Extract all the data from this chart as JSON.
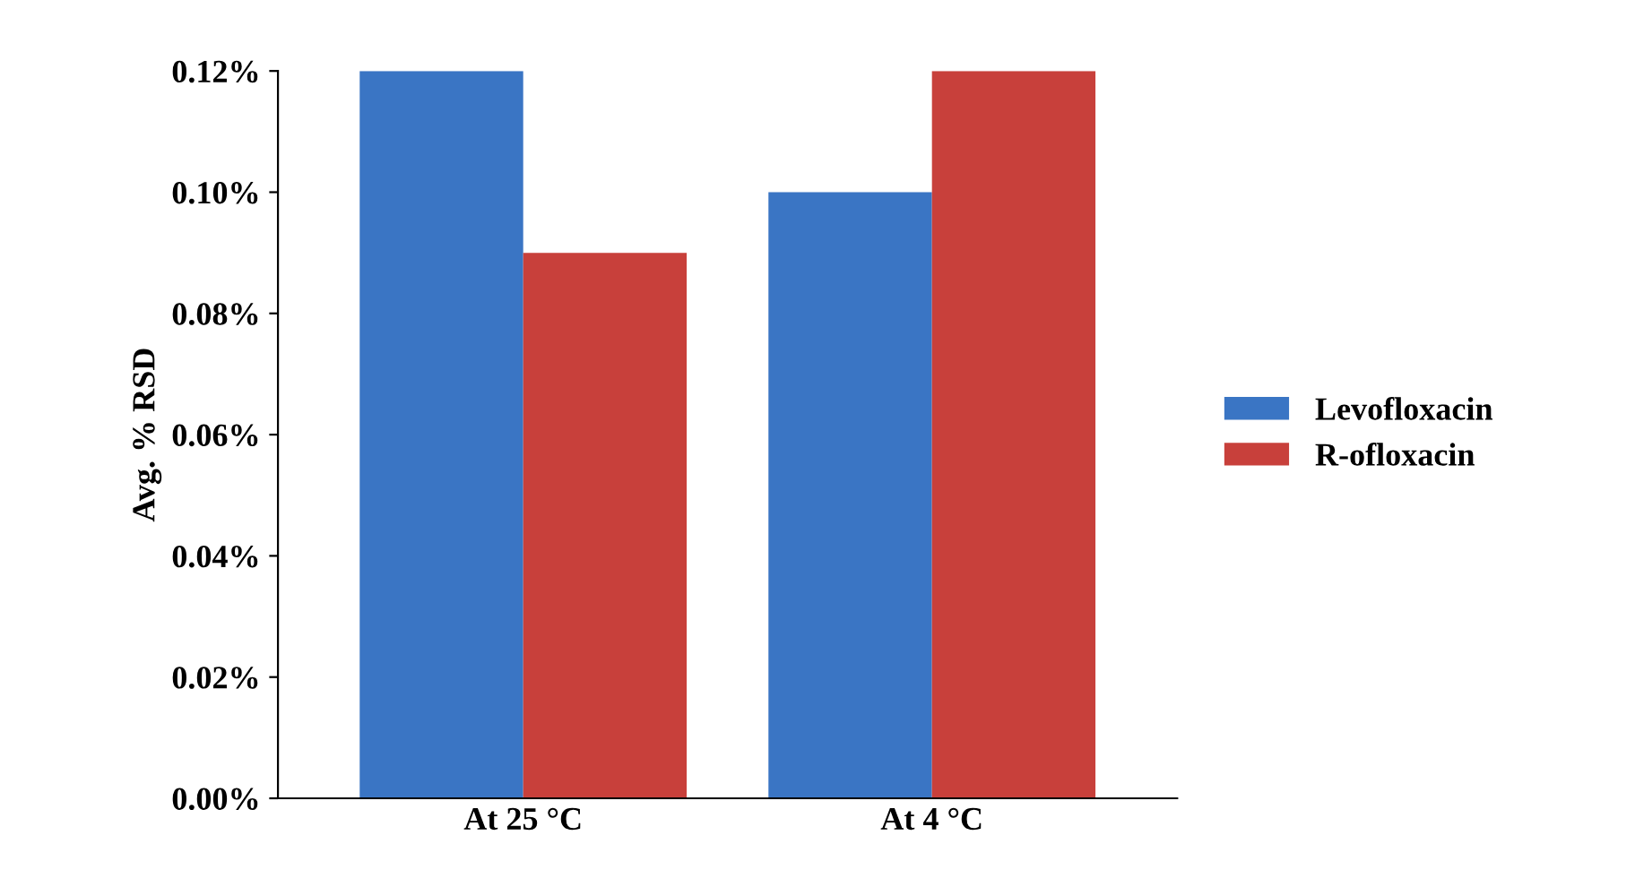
{
  "chart_data": {
    "type": "bar",
    "ylabel": "Avg. % RSD",
    "categories": [
      "At 25 °C",
      "At 4 °C"
    ],
    "series": [
      {
        "name": "Levofloxacin",
        "color": "#3a75c4",
        "values": [
          0.12,
          0.1
        ]
      },
      {
        "name": "R-ofloxacin",
        "color": "#c8403b",
        "values": [
          0.09,
          0.12
        ]
      }
    ],
    "ylim": [
      0,
      0.12
    ],
    "yticks": [
      {
        "value": 0,
        "label": "0.00%"
      },
      {
        "value": 0.02,
        "label": "0.02%"
      },
      {
        "value": 0.04,
        "label": "0.04%"
      },
      {
        "value": 0.06,
        "label": "0.06%"
      },
      {
        "value": 0.08,
        "label": "0.08%"
      },
      {
        "value": 0.1,
        "label": "0.10%"
      },
      {
        "value": 0.12,
        "label": "0.12%"
      }
    ],
    "grid": false,
    "legend": "right"
  }
}
